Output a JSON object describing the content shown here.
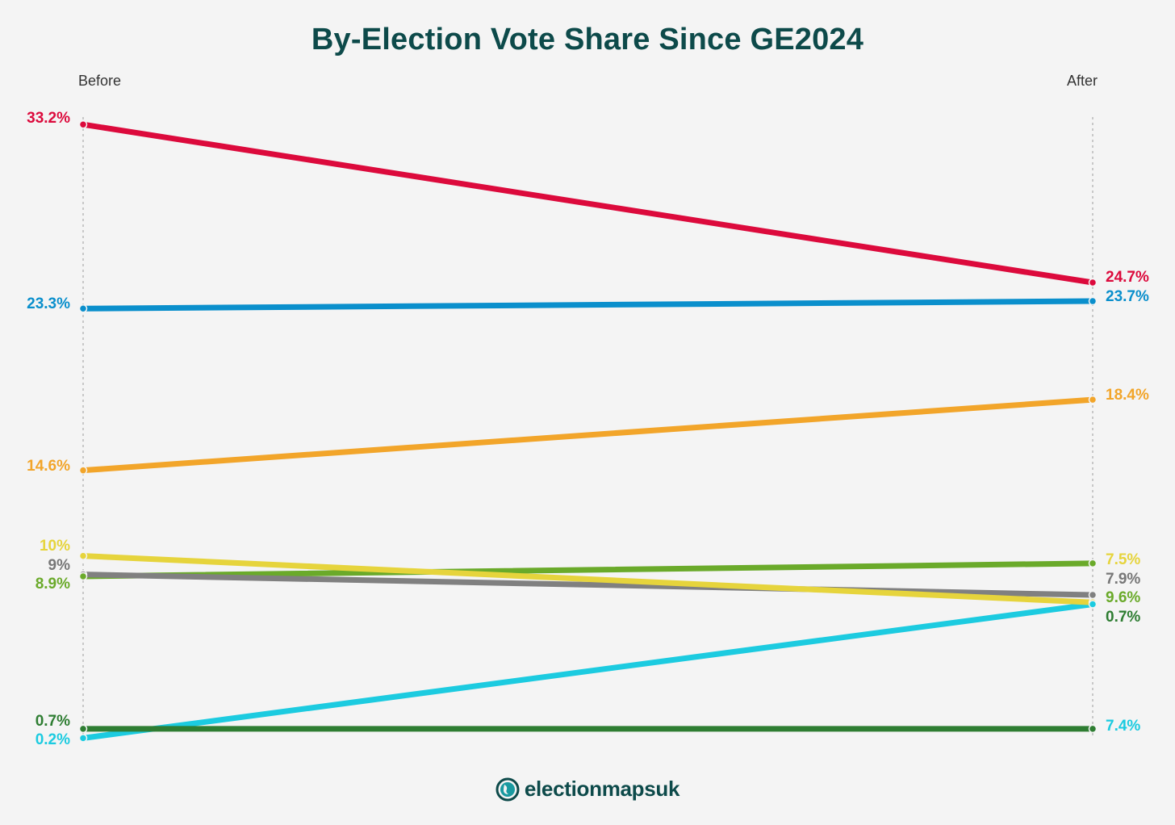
{
  "chart_data": {
    "type": "line",
    "title": "By-Election Vote Share Since GE2024",
    "categories": [
      "Before",
      "After"
    ],
    "value_format": "percent",
    "series": [
      {
        "color": "#dc0a3c",
        "values": [
          33.2,
          24.7
        ],
        "labels": [
          "33.2%",
          "24.7%"
        ]
      },
      {
        "color": "#0a8fcc",
        "values": [
          23.3,
          23.7
        ],
        "labels": [
          "23.3%",
          "23.7%"
        ]
      },
      {
        "color": "#f2a52a",
        "values": [
          14.6,
          18.4
        ],
        "labels": [
          "14.6%",
          "18.4%"
        ]
      },
      {
        "color": "#e6d43c",
        "values": [
          10,
          7.5
        ],
        "labels": [
          "10%",
          "7.5%"
        ]
      },
      {
        "color": "#808080",
        "values": [
          9,
          7.9
        ],
        "labels": [
          "9%",
          "7.9%"
        ]
      },
      {
        "color": "#6aaa2a",
        "values": [
          8.9,
          9.6
        ],
        "labels": [
          "8.9%",
          "9.6%"
        ]
      },
      {
        "color": "#2e7d32",
        "values": [
          0.7,
          0.7
        ],
        "labels": [
          "0.7%",
          "0.7%"
        ]
      },
      {
        "color": "#1ccbe0",
        "values": [
          0.2,
          7.4
        ],
        "labels": [
          "0.2%",
          "7.4%"
        ]
      }
    ],
    "grid": false,
    "legend": "none"
  },
  "branding": {
    "logo_text": "electionmapsuk",
    "logo_color": "#0d4a4a"
  }
}
